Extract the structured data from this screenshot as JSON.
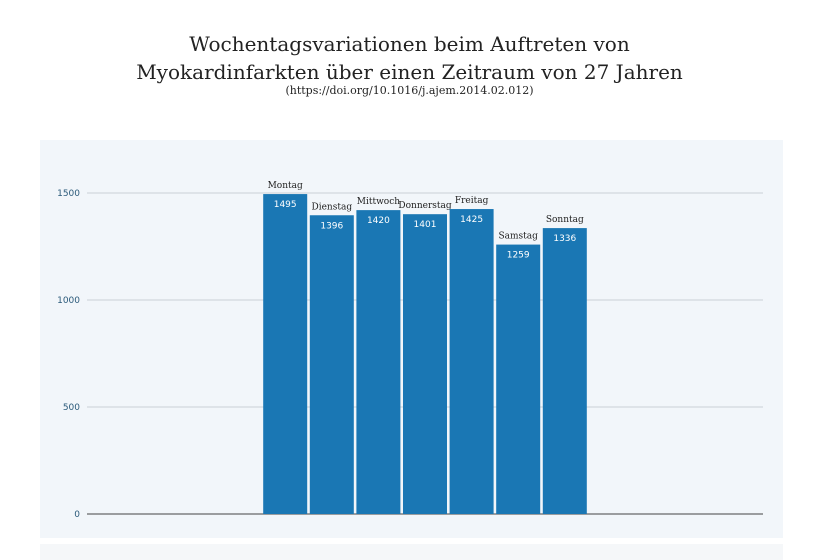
{
  "chart_data": {
    "type": "bar",
    "title": "Wochentagsvariationen beim Auftreten von",
    "title_line2": "Myokardinfarkten über einen Zeitraum von 27 Jahren",
    "subtitle": "(https://doi.org/10.1016/j.ajem.2014.02.012)",
    "categories": [
      "Montag",
      "Dienstag",
      "Mittwoch",
      "Donnerstag",
      "Freitag",
      "Samstag",
      "Sonntag"
    ],
    "values": [
      1495,
      1396,
      1420,
      1401,
      1425,
      1259,
      1336
    ],
    "ylim": [
      0,
      1650
    ],
    "yticks": [
      0,
      500,
      1000,
      1500
    ],
    "grid": true,
    "bar_color": "#1a77b4",
    "background": "#f2f6fa"
  }
}
